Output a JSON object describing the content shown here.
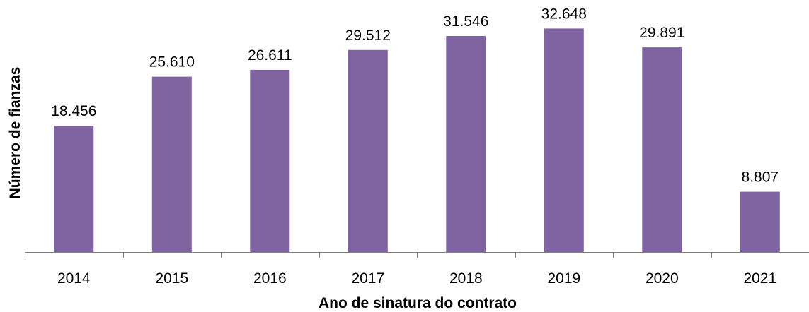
{
  "chart_data": {
    "type": "bar",
    "categories": [
      "2014",
      "2015",
      "2016",
      "2017",
      "2018",
      "2019",
      "2020",
      "2021"
    ],
    "values": [
      18456,
      25610,
      26611,
      29512,
      31546,
      32648,
      29891,
      8807
    ],
    "data_labels": [
      "18.456",
      "25.610",
      "26.611",
      "29.512",
      "31.546",
      "32.648",
      "29.891",
      "8.807"
    ],
    "title": "",
    "xlabel": "Ano de sinatura do contrato",
    "ylabel": "Número de  fianzas",
    "ylim": [
      0,
      35000
    ],
    "grid": false,
    "legend": "none",
    "bar_color": "#8064a2",
    "axis_color": "#7f7f7f"
  }
}
